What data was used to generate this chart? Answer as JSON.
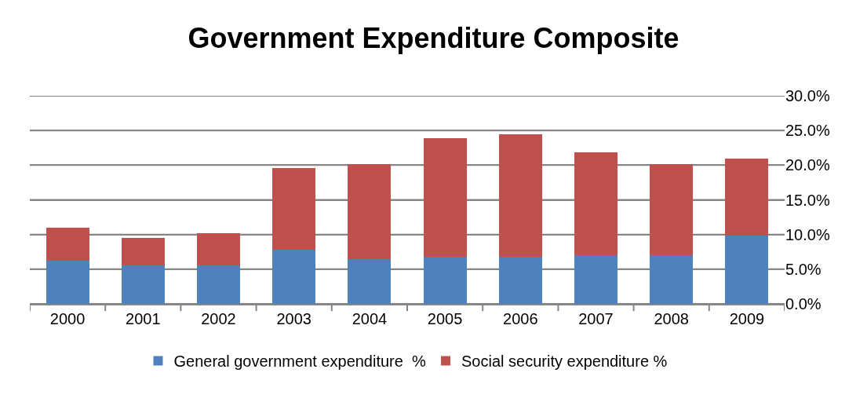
{
  "chart_data": {
    "type": "bar",
    "title": "Government Expenditure Composite",
    "categories": [
      "2000",
      "2001",
      "2002",
      "2003",
      "2004",
      "2005",
      "2006",
      "2007",
      "2008",
      "2009"
    ],
    "stacked": true,
    "series": [
      {
        "name": "General government expenditure  %",
        "color": "#4f81bd",
        "values": [
          6.2,
          5.5,
          5.5,
          7.8,
          6.5,
          6.8,
          6.8,
          7.0,
          7.0,
          9.8
        ]
      },
      {
        "name": "Social security expenditure %",
        "color": "#c0504d",
        "values": [
          4.8,
          4.0,
          4.7,
          11.8,
          13.6,
          17.1,
          17.7,
          14.9,
          13.2,
          11.2
        ]
      }
    ],
    "ylim": [
      0,
      30
    ],
    "yticks": [
      {
        "value": 0,
        "label": "0.0%"
      },
      {
        "value": 5,
        "label": "5.0%"
      },
      {
        "value": 10,
        "label": "10.0%"
      },
      {
        "value": 15,
        "label": "15.0%"
      },
      {
        "value": 20,
        "label": "20.0%"
      },
      {
        "value": 25,
        "label": "25.0%"
      },
      {
        "value": 30,
        "label": "30.0%"
      }
    ],
    "grid": "y",
    "legend": "bottom"
  }
}
